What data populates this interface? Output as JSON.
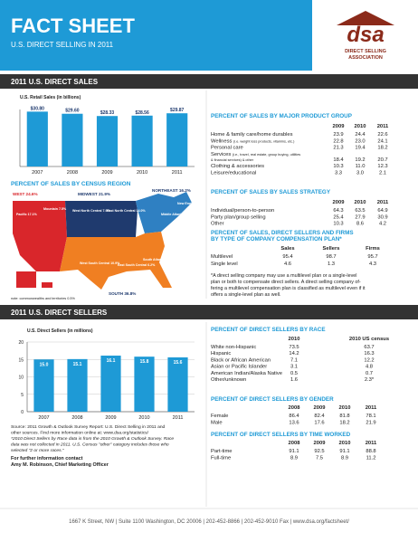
{
  "header": {
    "title": "FACT SHEET",
    "subtitle": "U.S. DIRECT SELLING IN 2011",
    "logo": "dsa",
    "org": [
      "DIRECT SELLING",
      "ASSOCIATION"
    ]
  },
  "sections": [
    "2011 U.S. DIRECT SALES",
    "2011 U.S. DIRECT SELLERS"
  ],
  "sales_chart": {
    "type": "bar",
    "title": "U.S. Retail Sales (in billions)",
    "categories": [
      "2007",
      "2008",
      "2009",
      "2010",
      "2011"
    ],
    "values": [
      30.8,
      29.6,
      28.33,
      28.56,
      29.87
    ],
    "value_labels": [
      "$30.80",
      "$29.60",
      "$28.33",
      "$28.56",
      "$29.87"
    ],
    "color": "#1e9ad6",
    "ylim": [
      0,
      32
    ]
  },
  "region_map": {
    "title": "PERCENT OF SALES BY CENSUS REGION",
    "labels": [
      "WEST 24.6%",
      "Pacific 17.1%",
      "Mountain 7.5%",
      "MIDWEST 21.9%",
      "West North Central 7.9%",
      "East North Central 14.0%",
      "NORTHEAST 16.2%",
      "Middle Atlantic 12.9%",
      "New England 3.3%",
      "SOUTH 36.8%",
      "West South Central 10.9%",
      "East South Central 6.2%",
      "South Atlantic 19.6%"
    ],
    "note": "note: commonwealths and territories 0.5%"
  },
  "product_group": {
    "title": "PERCENT OF SALES BY MAJOR PRODUCT GROUP",
    "columns": [
      "2009",
      "2010",
      "2011"
    ],
    "rows": [
      {
        "label": "Home & family care/home durables",
        "values": [
          "23.9",
          "24.4",
          "22.6"
        ]
      },
      {
        "label": "Wellness",
        "detail": "(i.e. weight loss products, vitamins, etc.)",
        "values": [
          "22.8",
          "23.0",
          "24.1"
        ]
      },
      {
        "label": "Personal care",
        "values": [
          "21.3",
          "19.4",
          "18.2"
        ]
      },
      {
        "label": "Services",
        "detail": "(i.e., travel, real estate, group buying, utilities",
        "label2": "& financial services) & other",
        "values": [
          "18.4",
          "19.2",
          "20.7"
        ]
      },
      {
        "label": "Clothing & accessories",
        "values": [
          "10.3",
          "11.0",
          "12.3"
        ]
      },
      {
        "label": "Leisure/educational",
        "values": [
          "3.3",
          "3.0",
          "2.1"
        ]
      }
    ]
  },
  "sales_strategy": {
    "title": "PERCENT OF SALES BY SALES STRATEGY",
    "columns": [
      "2009",
      "2010",
      "2011"
    ],
    "rows": [
      {
        "label": "Individual/person-to-person",
        "values": [
          "64.3",
          "63.5",
          "64.9"
        ]
      },
      {
        "label": "Party plan/group selling",
        "values": [
          "25.4",
          "27.9",
          "30.9"
        ]
      },
      {
        "label": "Other",
        "values": [
          "10.3",
          "8.6",
          "4.2"
        ]
      }
    ]
  },
  "compensation": {
    "title": "PERCENT OF SALES, DIRECT SELLERS AND FIRMS",
    "title2": "BY TYPE OF COMPANY COMPENSATION PLAN*",
    "columns": [
      "Sales",
      "Sellers",
      "Firms"
    ],
    "rows": [
      {
        "label": "Multilevel",
        "values": [
          "95.4",
          "98.7",
          "95.7"
        ]
      },
      {
        "label": "Single level",
        "values": [
          "4.6",
          "1.3",
          "4.3"
        ]
      }
    ],
    "note": [
      "*A direct selling company may use a multilevel plan or a single-level",
      "plan or both to compensate direct sellers. A direct selling company of-",
      "fering a multilevel compensation plan is classified as multilevel even if it",
      "offers a single-level plan as well."
    ]
  },
  "sellers_chart": {
    "type": "bar",
    "title": "U.S. Direct Sellers (in millions)",
    "categories": [
      "2007",
      "2008",
      "2009",
      "2010",
      "2011"
    ],
    "values": [
      15.0,
      15.1,
      16.1,
      15.8,
      15.6
    ],
    "value_labels": [
      "15.0",
      "15.1",
      "16.1",
      "15.8",
      "15.6"
    ],
    "color": "#1e9ad6",
    "ylim": [
      0,
      20
    ],
    "yticks": [
      0,
      5,
      10,
      15,
      20
    ],
    "grid": true
  },
  "source": [
    "Source: 2011 Growth & Outlook Survey Report: U.S. Direct Selling in 2011 and",
    "other sources. Find more information online at: www.dsa.org/statistics/",
    "*2010 Direct Sellers by Race data is from the 2010 Growth & Outlook Survey. Race",
    "data was not collected in 2011. U.S. Census \"other\" category includes those who",
    "selected \"2 or more races.\""
  ],
  "contact": [
    "For further information contact",
    "Amy M. Robinson, Chief Marketing Officer"
  ],
  "race": {
    "title": "PERCENT OF DIRECT SELLERS BY RACE",
    "columns": [
      "2010",
      "2010 US census"
    ],
    "rows": [
      {
        "label": "White non-Hispanic",
        "values": [
          "73.5",
          "63.7"
        ]
      },
      {
        "label": "Hispanic",
        "values": [
          "14.2",
          "16.3"
        ]
      },
      {
        "label": "Black or African American",
        "values": [
          "7.1",
          "12.2"
        ]
      },
      {
        "label": "Asian or Pacific Islander",
        "values": [
          "3.1",
          "4.8"
        ]
      },
      {
        "label": "American Indian/Alaska Native",
        "values": [
          "0.5",
          "0.7"
        ]
      },
      {
        "label": "Other/unknown",
        "values": [
          "1.6",
          "2.3*"
        ]
      }
    ]
  },
  "gender": {
    "title": "PERCENT OF DIRECT SELLERS BY GENDER",
    "columns": [
      "2008",
      "2009",
      "2010",
      "2011"
    ],
    "rows": [
      {
        "label": "Female",
        "values": [
          "86.4",
          "82.4",
          "81.8",
          "78.1"
        ]
      },
      {
        "label": "Male",
        "values": [
          "13.6",
          "17.6",
          "18.2",
          "21.9"
        ]
      }
    ]
  },
  "time_worked": {
    "title": "PERCENT OF DIRECT SELLERS BY TIME WORKED",
    "columns": [
      "2008",
      "2009",
      "2010",
      "2011"
    ],
    "rows": [
      {
        "label": "Part-time",
        "values": [
          "91.1",
          "92.5",
          "91.1",
          "88.8"
        ]
      },
      {
        "label": "Full-time",
        "values": [
          "8.9",
          "7.5",
          "8.9",
          "11.2"
        ]
      }
    ]
  },
  "footer": "1667 K Street, NW | Suite 1100 Washington, DC 20006 | 202-452-8866 | 202-452-9010 Fax | www.dsa.org/factsheet/"
}
